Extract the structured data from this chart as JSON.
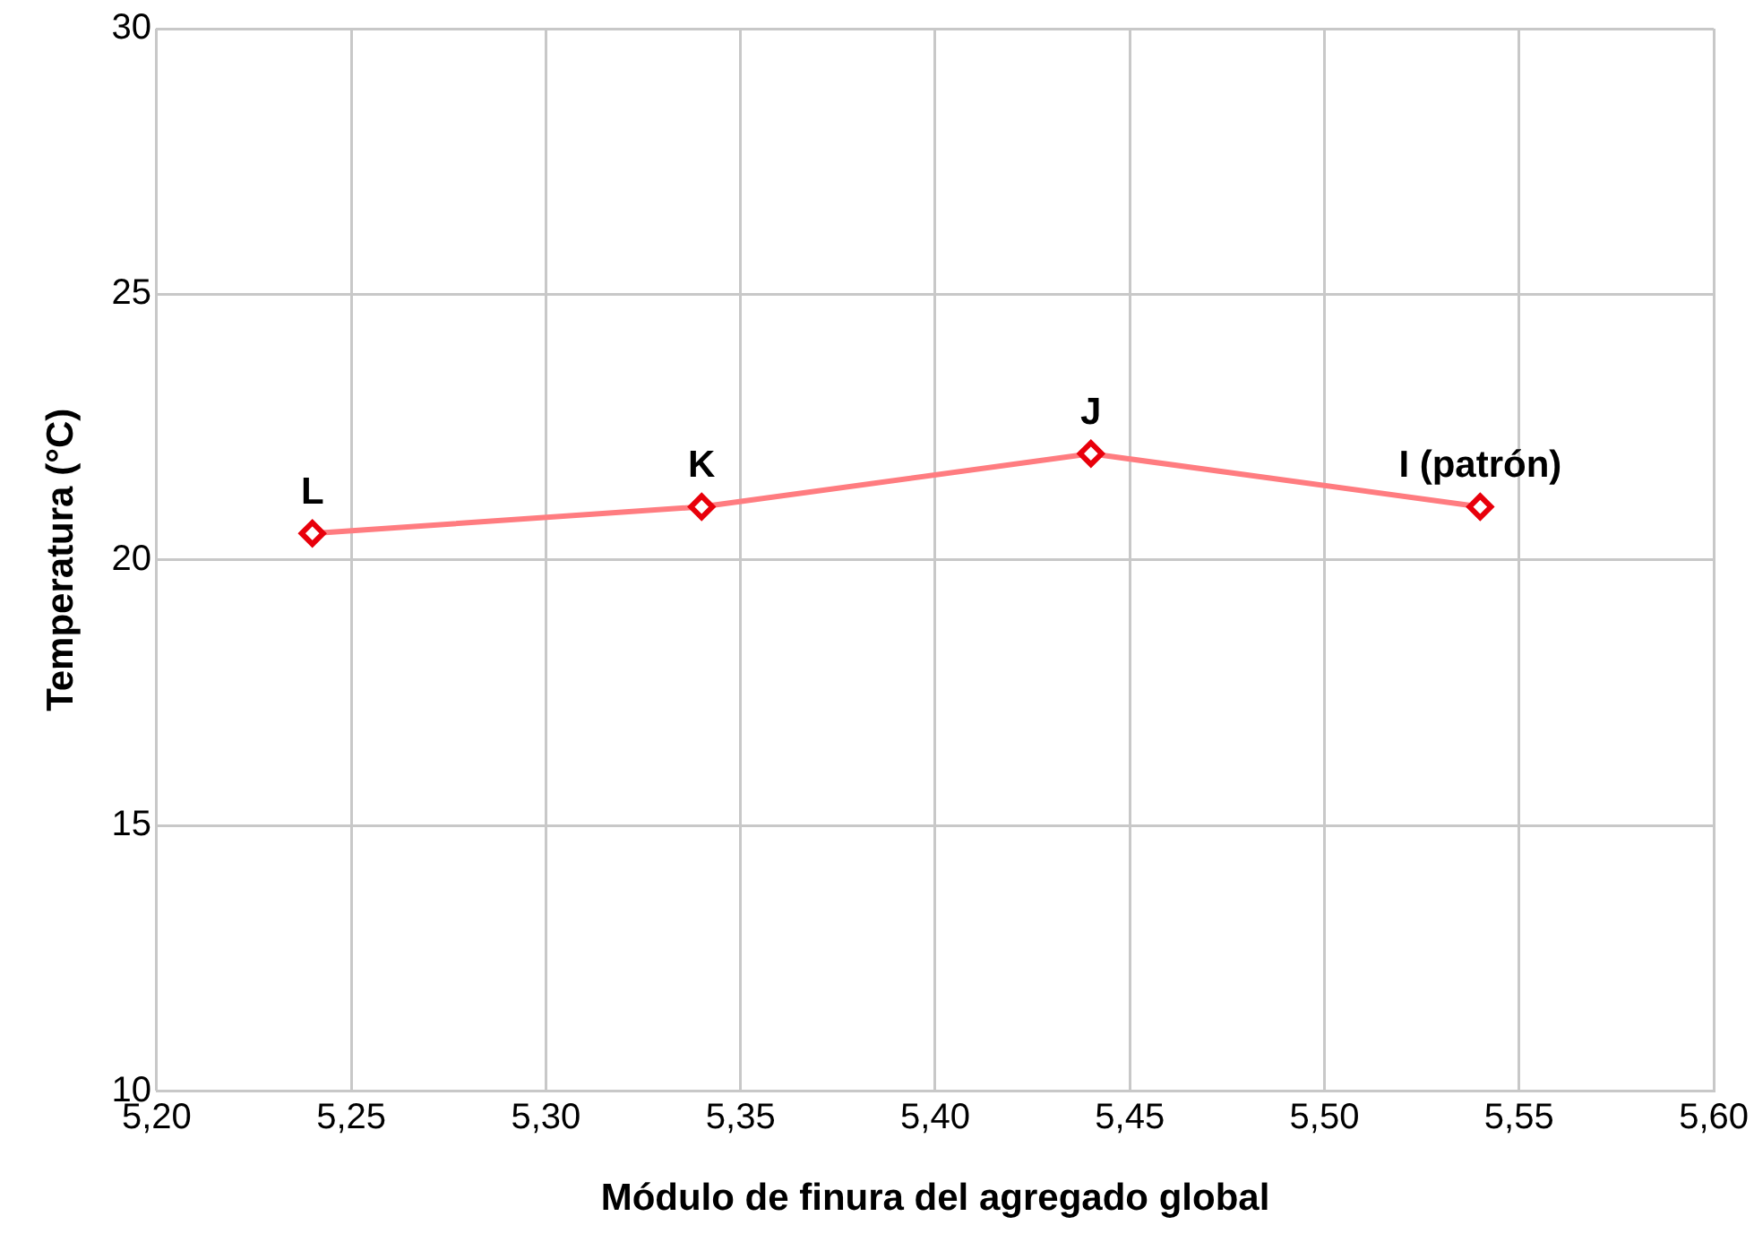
{
  "chart_data": {
    "type": "line",
    "xlabel": "Módulo de finura del agregado global",
    "ylabel": "Temperatura (°C)",
    "x": [
      5.24,
      5.34,
      5.44,
      5.54
    ],
    "series": [
      {
        "color": "#ff7c80",
        "values": [
          20.5,
          21,
          22,
          21
        ]
      }
    ],
    "xlim": [
      5.2,
      5.6
    ],
    "xticks": [
      {
        "value": 5.2,
        "label": "5,20"
      },
      {
        "value": 5.25,
        "label": "5,25"
      },
      {
        "value": 5.3,
        "label": "5,30"
      },
      {
        "value": 5.35,
        "label": "5,35"
      },
      {
        "value": 5.4,
        "label": "5,40"
      },
      {
        "value": 5.45,
        "label": "5,45"
      },
      {
        "value": 5.5,
        "label": "5,50"
      },
      {
        "value": 5.55,
        "label": "5,55"
      },
      {
        "value": 5.6,
        "label": "5,60"
      }
    ],
    "ylim": [
      10,
      30
    ],
    "yticks": [
      10,
      15,
      20,
      25,
      30
    ],
    "grid": true,
    "legend": false,
    "marker": "diamond",
    "line_style": "solid",
    "annotations": [
      {
        "text": "L",
        "x": 5.24,
        "y": 20.5
      },
      {
        "text": "K",
        "x": 5.34,
        "y": 21
      },
      {
        "text": "J",
        "x": 5.44,
        "y": 22
      },
      {
        "text": "I (patrón)",
        "x": 5.54,
        "y": 21
      }
    ]
  }
}
